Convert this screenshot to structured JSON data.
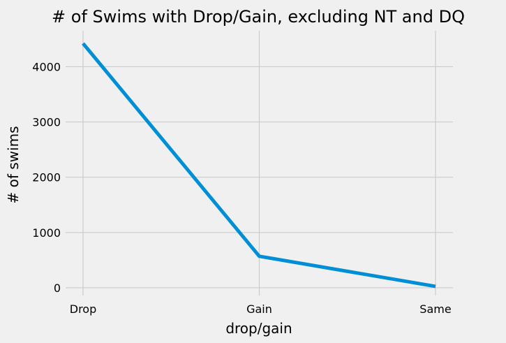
{
  "chart_data": {
    "type": "line",
    "title": "# of Swims with Drop/Gain, excluding NT and DQ",
    "xlabel": "drop/gain",
    "ylabel": "# of swims",
    "categories": [
      "Drop",
      "Gain",
      "Same"
    ],
    "values": [
      4420,
      570,
      25
    ],
    "ylim": [
      -140,
      4650
    ],
    "yticks": [
      0,
      1000,
      2000,
      3000,
      4000
    ],
    "grid": true,
    "series_color": "#008fd5",
    "background": "#f0f0f0"
  }
}
